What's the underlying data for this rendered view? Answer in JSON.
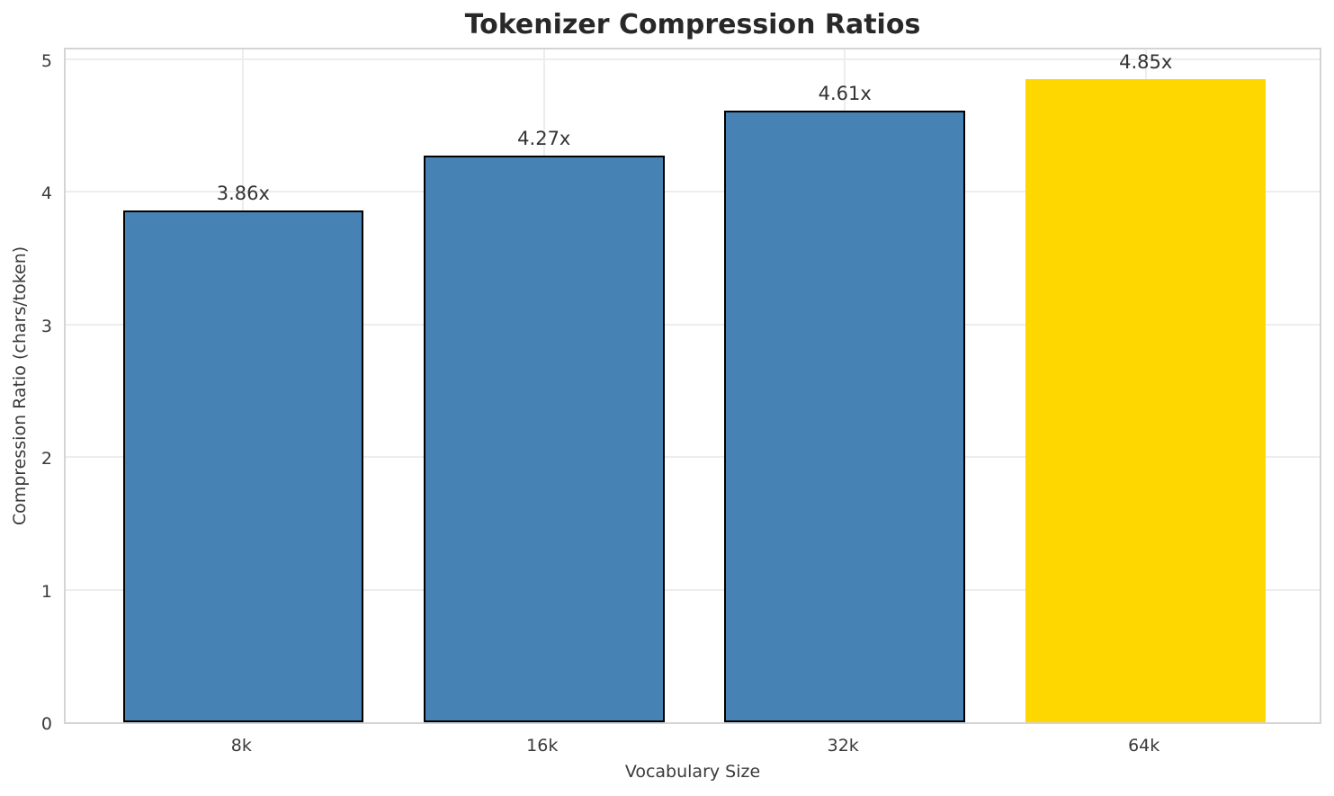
{
  "chart_data": {
    "type": "bar",
    "title": "Tokenizer Compression Ratios",
    "xlabel": "Vocabulary Size",
    "ylabel": "Compression Ratio (chars/token)",
    "categories": [
      "8k",
      "16k",
      "32k",
      "64k"
    ],
    "values": [
      3.86,
      4.27,
      4.61,
      4.85
    ],
    "value_labels": [
      "3.86x",
      "4.27x",
      "4.61x",
      "4.85x"
    ],
    "bar_colors": [
      "#4682B4",
      "#4682B4",
      "#4682B4",
      "#FFD700"
    ],
    "bar_edge_colors": [
      "#000000",
      "#000000",
      "#000000",
      "none"
    ],
    "yticks": [
      0,
      1,
      2,
      3,
      4,
      5
    ],
    "ylim": [
      0,
      5.1
    ],
    "grid": true,
    "legend": "none",
    "colors": {
      "grid": "#ededed",
      "spine": "#d4d4d4",
      "tick_text": "#3a3a3a",
      "title_text": "#282828",
      "value_text": "#333333",
      "background": "#ffffff"
    }
  }
}
